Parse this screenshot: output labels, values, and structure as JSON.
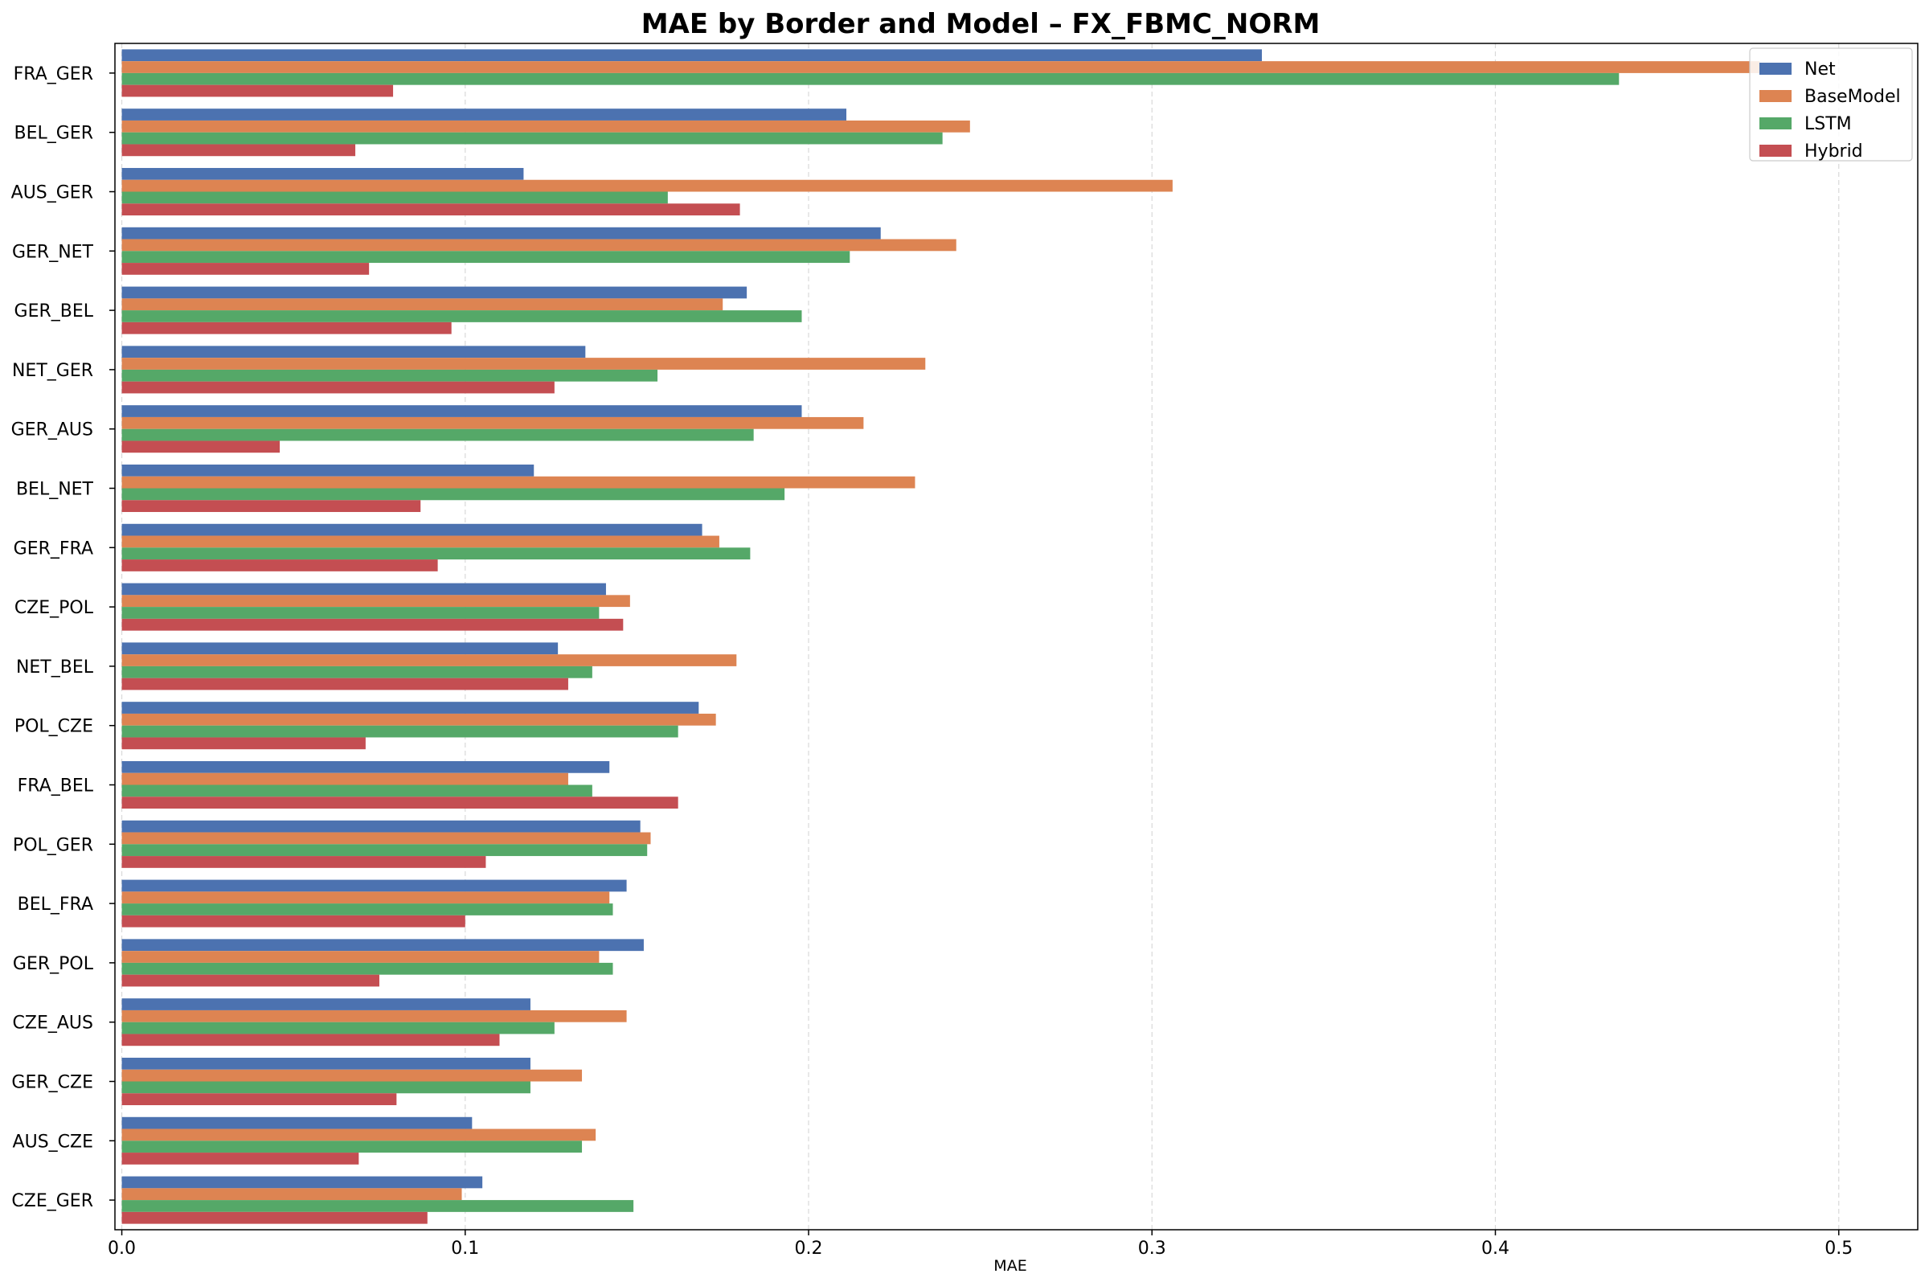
{
  "chart_data": {
    "type": "bar",
    "orientation": "horizontal",
    "title": "MAE by Border and Model – FX_FBMC_NORM",
    "xlabel": "MAE",
    "ylabel": "",
    "xlim": [
      -0.002,
      0.523
    ],
    "xticks": [
      0.0,
      0.1,
      0.2,
      0.3,
      0.4,
      0.5
    ],
    "xtick_labels": [
      "0.0",
      "0.1",
      "0.2",
      "0.3",
      "0.4",
      "0.5"
    ],
    "grid": "vertical dashed",
    "legend_position": "top-right",
    "categories": [
      "FRA_GER",
      "BEL_GER",
      "AUS_GER",
      "GER_NET",
      "GER_BEL",
      "NET_GER",
      "GER_AUS",
      "BEL_NET",
      "GER_FRA",
      "CZE_POL",
      "NET_BEL",
      "POL_CZE",
      "FRA_BEL",
      "POL_GER",
      "BEL_FRA",
      "GER_POL",
      "CZE_AUS",
      "GER_CZE",
      "AUS_CZE",
      "CZE_GER"
    ],
    "series": [
      {
        "name": "Net",
        "color": "#4c72b0",
        "values": [
          0.332,
          0.211,
          0.117,
          0.221,
          0.182,
          0.135,
          0.198,
          0.12,
          0.169,
          0.141,
          0.127,
          0.168,
          0.142,
          0.151,
          0.147,
          0.152,
          0.119,
          0.119,
          0.102,
          0.105
        ]
      },
      {
        "name": "BaseModel",
        "color": "#dd8452",
        "values": [
          0.477,
          0.247,
          0.306,
          0.243,
          0.175,
          0.234,
          0.216,
          0.231,
          0.174,
          0.148,
          0.179,
          0.173,
          0.13,
          0.154,
          0.142,
          0.139,
          0.147,
          0.134,
          0.138,
          0.099
        ]
      },
      {
        "name": "LSTM",
        "color": "#55a868",
        "values": [
          0.436,
          0.239,
          0.159,
          0.212,
          0.198,
          0.156,
          0.184,
          0.193,
          0.183,
          0.139,
          0.137,
          0.162,
          0.137,
          0.153,
          0.143,
          0.143,
          0.126,
          0.119,
          0.134,
          0.149
        ]
      },
      {
        "name": "Hybrid",
        "color": "#c44e52",
        "values": [
          0.079,
          0.068,
          0.18,
          0.072,
          0.096,
          0.126,
          0.046,
          0.087,
          0.092,
          0.146,
          0.13,
          0.071,
          0.162,
          0.106,
          0.1,
          0.075,
          0.11,
          0.08,
          0.069,
          0.089
        ]
      }
    ]
  }
}
